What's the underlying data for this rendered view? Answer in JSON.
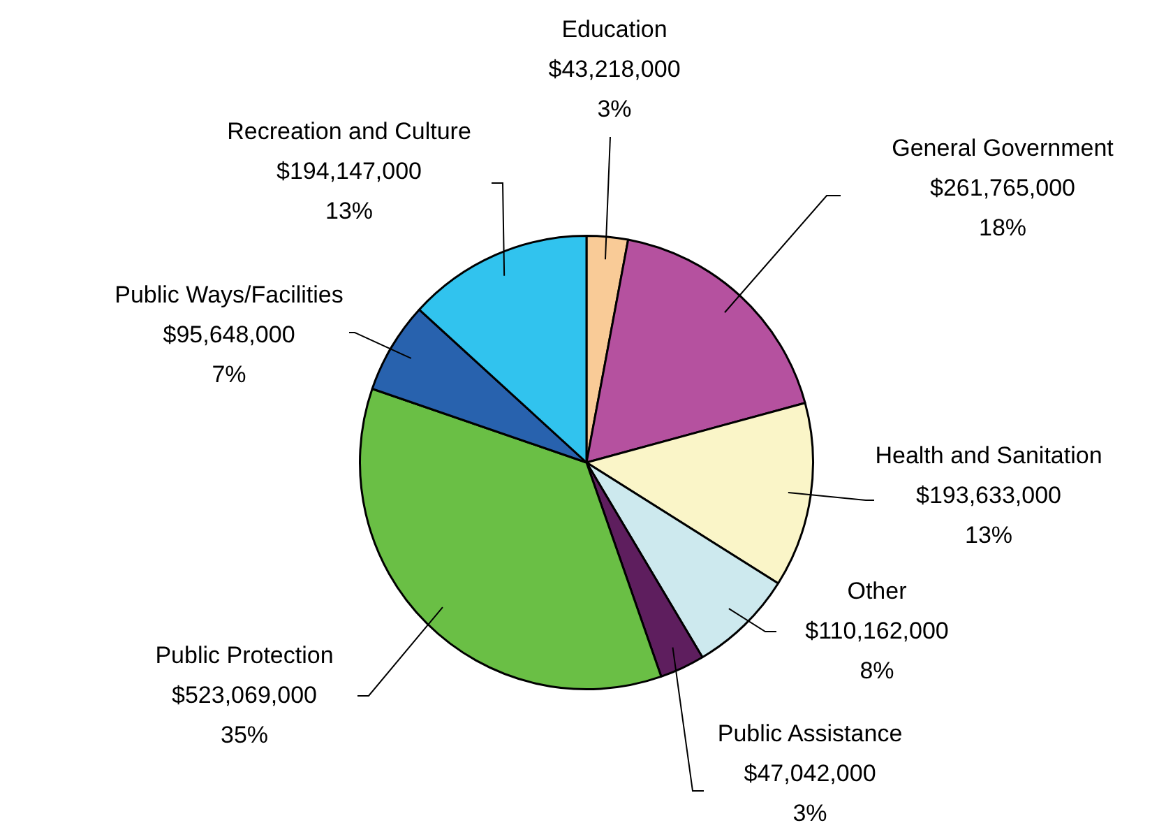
{
  "chart_data": {
    "type": "pie",
    "categories": [
      "Education",
      "General Government",
      "Health and Sanitation",
      "Other",
      "Public Assistance",
      "Public Protection",
      "Public Ways/Facilities",
      "Recreation and Culture"
    ],
    "values": [
      43218000,
      261765000,
      193633000,
      110162000,
      47042000,
      523069000,
      95648000,
      194147000
    ],
    "colors": [
      "#f9cb97",
      "#b5519f",
      "#faf5c8",
      "#cde9ee",
      "#5e1e5e",
      "#6abf45",
      "#2862ae",
      "#31c3ee"
    ],
    "value_labels": [
      "$43,218,000\n3%",
      "$261,765,000\n18%",
      "$193,633,000\n13%",
      "$110,162,000\n8%",
      "$47,042,000\n3%",
      "$523,069,000\n35%",
      "$95,648,000\n7%",
      "$194,147,000\n13%"
    ],
    "legend": false
  }
}
